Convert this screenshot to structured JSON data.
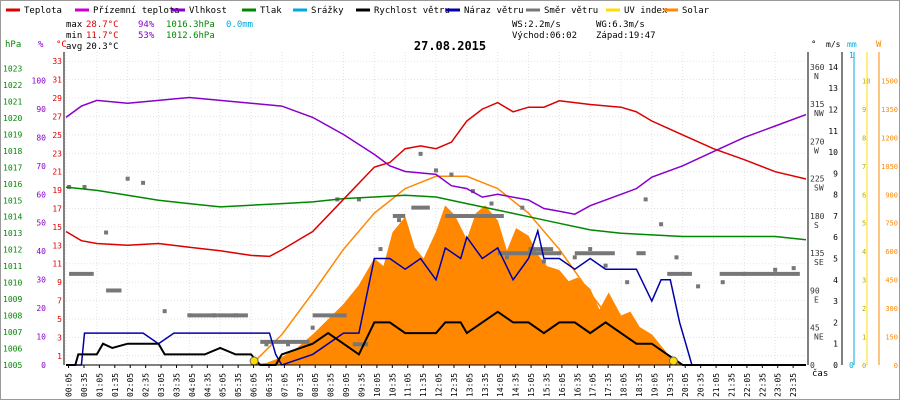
{
  "chart_data": {
    "type": "line",
    "title": "27.08.2015",
    "time_label": "čas",
    "colors": {
      "temperature": "#dd0000",
      "apparent_temperature": "#cc00cc",
      "humidity": "#8800cc",
      "pressure": "#008800",
      "precipitation": "#00aadd",
      "wind_speed": "#000000",
      "wind_gust": "#0000aa",
      "wind_direction": "#777777",
      "uv_index": "#ffdd00",
      "solar": "#ff8800"
    },
    "legend": [
      {
        "key": "temperature",
        "label": "Teplota"
      },
      {
        "key": "apparent_temperature",
        "label": "Přízemní teplota"
      },
      {
        "key": "humidity",
        "label": "Vlhkost"
      },
      {
        "key": "pressure",
        "label": "Tlak"
      },
      {
        "key": "precipitation",
        "label": "Srážky"
      },
      {
        "key": "wind_speed",
        "label": "Rychlost větru"
      },
      {
        "key": "wind_gust",
        "label": "Náraz větru"
      },
      {
        "key": "wind_direction",
        "label": "Směr větru"
      },
      {
        "key": "uv_index",
        "label": "UV index"
      },
      {
        "key": "solar",
        "label": "Solar"
      }
    ],
    "stats": {
      "max_label": "max",
      "max_temp": "28.7°C",
      "max_hum": "94%",
      "max_press": "1016.3hPa",
      "rain": "0.0mm",
      "min_label": "min",
      "min_temp": "11.7°C",
      "min_hum": "53%",
      "min_press": "1012.6hPa",
      "avg_label": "avg",
      "avg_temp": "20.3°C",
      "ws": "WS:2.2m/s",
      "wg": "WG:6.3m/s",
      "sunrise": "Východ:06:02",
      "sunset": "Západ:19:47"
    },
    "left_axes": {
      "pressure": {
        "unit": "hPa",
        "ticks": [
          "1023",
          "1022",
          "1021",
          "1020",
          "1019",
          "1018",
          "1017",
          "1016",
          "1015",
          "1014",
          "1013",
          "1012",
          "1011",
          "1010",
          "1009",
          "1008",
          "1007",
          "1006",
          "1005"
        ]
      },
      "humidity": {
        "unit": "%",
        "ticks": [
          "100",
          "90",
          "80",
          "70",
          "60",
          "50",
          "40",
          "30",
          "20",
          "10",
          "0"
        ]
      },
      "temperature": {
        "unit": "°C",
        "ticks": [
          "33",
          "31",
          "29",
          "27",
          "25",
          "23",
          "21",
          "19",
          "17",
          "15",
          "13",
          "11",
          "9",
          "7",
          "5",
          "3",
          "1"
        ]
      }
    },
    "right_axes": {
      "direction": {
        "unit": "°",
        "ticks": [
          "360",
          "315",
          "270",
          "225",
          "180",
          "135",
          "90",
          "45",
          "0"
        ],
        "compass": [
          "N",
          "NW",
          "W",
          "SW",
          "S",
          "SE",
          "E",
          "NE",
          ""
        ]
      },
      "wind": {
        "unit": "m/s",
        "ticks": [
          "14",
          "13",
          "12",
          "11",
          "10",
          "9",
          "8",
          "7",
          "6",
          "5",
          "4",
          "3",
          "2",
          "1",
          "0"
        ]
      },
      "rain": {
        "unit": "mm",
        "ticks": [
          "1",
          "0"
        ]
      },
      "uv": {
        "unit": "",
        "ticks": [
          "10",
          "9",
          "8",
          "7",
          "6",
          "5",
          "4",
          "3",
          "2",
          "1",
          "0"
        ]
      },
      "solar": {
        "unit": "W",
        "ticks": [
          "1500",
          "1350",
          "1200",
          "1050",
          "900",
          "750",
          "600",
          "450",
          "300",
          "150",
          "0"
        ]
      }
    },
    "x_labels": [
      "00:05",
      "00:35",
      "01:05",
      "01:35",
      "02:05",
      "02:35",
      "03:05",
      "03:35",
      "04:05",
      "04:35",
      "05:05",
      "05:35",
      "06:05",
      "06:35",
      "07:05",
      "07:35",
      "08:05",
      "08:35",
      "09:05",
      "09:35",
      "10:05",
      "10:35",
      "11:05",
      "11:35",
      "12:05",
      "12:35",
      "13:05",
      "13:35",
      "14:05",
      "14:35",
      "15:05",
      "15:35",
      "16:05",
      "16:35",
      "17:05",
      "17:35",
      "18:05",
      "18:35",
      "19:05",
      "19:35",
      "20:05",
      "20:35",
      "21:05",
      "21:35",
      "22:05",
      "22:35",
      "23:05",
      "23:35"
    ],
    "series": {
      "temperature": [
        [
          0,
          14.5
        ],
        [
          0.5,
          13.5
        ],
        [
          1,
          13.2
        ],
        [
          2,
          13
        ],
        [
          3,
          13.2
        ],
        [
          4,
          12.8
        ],
        [
          5,
          12.4
        ],
        [
          6,
          11.9
        ],
        [
          6.6,
          11.8
        ],
        [
          7,
          12.5
        ],
        [
          8,
          14.5
        ],
        [
          9,
          18
        ],
        [
          10,
          21.5
        ],
        [
          10.5,
          22
        ],
        [
          11,
          23.5
        ],
        [
          11.5,
          23.8
        ],
        [
          12,
          23.5
        ],
        [
          12.5,
          24.2
        ],
        [
          13,
          26.5
        ],
        [
          13.5,
          27.8
        ],
        [
          14,
          28.5
        ],
        [
          14.5,
          27.5
        ],
        [
          15,
          28
        ],
        [
          15.5,
          28
        ],
        [
          16,
          28.7
        ],
        [
          16.5,
          28.5
        ],
        [
          17,
          28.3
        ],
        [
          18,
          28
        ],
        [
          18.5,
          27.5
        ],
        [
          19,
          26.5
        ],
        [
          20,
          25
        ],
        [
          21,
          23.5
        ],
        [
          22,
          22.3
        ],
        [
          23,
          21
        ],
        [
          24,
          20.2
        ]
      ],
      "humidity": [
        [
          0,
          87
        ],
        [
          0.5,
          91
        ],
        [
          1,
          93
        ],
        [
          2,
          92
        ],
        [
          3,
          93
        ],
        [
          4,
          94
        ],
        [
          5,
          93
        ],
        [
          6,
          92
        ],
        [
          7,
          91
        ],
        [
          8,
          87
        ],
        [
          9,
          81
        ],
        [
          10,
          74
        ],
        [
          10.5,
          70
        ],
        [
          11,
          68
        ],
        [
          12,
          67
        ],
        [
          12.5,
          63
        ],
        [
          13,
          62
        ],
        [
          13.5,
          59
        ],
        [
          14,
          60
        ],
        [
          15,
          58
        ],
        [
          15.5,
          55
        ],
        [
          16,
          54
        ],
        [
          16.5,
          53
        ],
        [
          17,
          56
        ],
        [
          18,
          60
        ],
        [
          18.5,
          62
        ],
        [
          19,
          66
        ],
        [
          20,
          70
        ],
        [
          21,
          75
        ],
        [
          22,
          80
        ],
        [
          23,
          84
        ],
        [
          24,
          88
        ]
      ],
      "pressure": [
        [
          0,
          1015.8
        ],
        [
          1,
          1015.6
        ],
        [
          2,
          1015.3
        ],
        [
          3,
          1015
        ],
        [
          4,
          1014.8
        ],
        [
          5,
          1014.6
        ],
        [
          6,
          1014.7
        ],
        [
          7,
          1014.8
        ],
        [
          8,
          1014.9
        ],
        [
          9,
          1015.1
        ],
        [
          10,
          1015.2
        ],
        [
          11,
          1015.3
        ],
        [
          12,
          1015.2
        ],
        [
          13,
          1014.8
        ],
        [
          14,
          1014.4
        ],
        [
          15,
          1014
        ],
        [
          16,
          1013.6
        ],
        [
          17,
          1013.2
        ],
        [
          18,
          1013
        ],
        [
          19,
          1012.9
        ],
        [
          20,
          1012.8
        ],
        [
          21,
          1012.8
        ],
        [
          22,
          1012.8
        ],
        [
          23,
          1012.8
        ],
        [
          24,
          1012.6
        ]
      ],
      "wind_speed": [
        [
          0,
          0
        ],
        [
          0.3,
          0
        ],
        [
          0.4,
          0.5
        ],
        [
          1,
          0.5
        ],
        [
          1.2,
          1
        ],
        [
          1.5,
          0.8
        ],
        [
          2,
          1
        ],
        [
          3,
          1
        ],
        [
          3.2,
          0.5
        ],
        [
          4,
          0.5
        ],
        [
          4.5,
          0.5
        ],
        [
          5,
          0.8
        ],
        [
          5.5,
          0.5
        ],
        [
          6,
          0.5
        ],
        [
          6.3,
          0
        ],
        [
          6.8,
          0
        ],
        [
          7,
          0.5
        ],
        [
          8,
          1
        ],
        [
          8.5,
          1.5
        ],
        [
          9,
          1
        ],
        [
          9.5,
          0.5
        ],
        [
          10,
          2
        ],
        [
          10.5,
          2
        ],
        [
          11,
          1.5
        ],
        [
          11.5,
          1.5
        ],
        [
          12,
          1.5
        ],
        [
          12.3,
          2
        ],
        [
          12.8,
          2
        ],
        [
          13,
          1.5
        ],
        [
          13.5,
          2
        ],
        [
          14,
          2.5
        ],
        [
          14.5,
          2
        ],
        [
          15,
          2
        ],
        [
          15.5,
          1.5
        ],
        [
          16,
          2
        ],
        [
          16.5,
          2
        ],
        [
          17,
          1.5
        ],
        [
          17.5,
          2
        ],
        [
          18,
          1.5
        ],
        [
          18.5,
          1
        ],
        [
          19,
          1
        ],
        [
          19.5,
          0.5
        ],
        [
          20,
          0
        ],
        [
          24,
          0
        ]
      ],
      "wind_gust": [
        [
          0,
          0
        ],
        [
          0.5,
          0
        ],
        [
          0.6,
          1.5
        ],
        [
          1,
          1.5
        ],
        [
          2,
          1.5
        ],
        [
          2.5,
          1.5
        ],
        [
          3,
          1
        ],
        [
          3.5,
          1.5
        ],
        [
          4,
          1.5
        ],
        [
          5,
          1.5
        ],
        [
          5.5,
          1.5
        ],
        [
          6,
          1.5
        ],
        [
          6.6,
          1.5
        ],
        [
          6.8,
          0.5
        ],
        [
          7,
          0
        ],
        [
          8,
          0.5
        ],
        [
          9,
          1.5
        ],
        [
          9.5,
          1.5
        ],
        [
          10,
          5
        ],
        [
          10.5,
          5
        ],
        [
          11,
          4.5
        ],
        [
          11.5,
          5
        ],
        [
          12,
          4
        ],
        [
          12.3,
          5.5
        ],
        [
          12.8,
          5
        ],
        [
          13,
          6
        ],
        [
          13.5,
          5
        ],
        [
          14,
          5.5
        ],
        [
          14.5,
          4
        ],
        [
          15,
          5
        ],
        [
          15.3,
          6.3
        ],
        [
          15.5,
          5
        ],
        [
          16,
          5
        ],
        [
          16.5,
          4.5
        ],
        [
          17,
          5
        ],
        [
          17.5,
          4.5
        ],
        [
          18,
          4.5
        ],
        [
          18.5,
          4.5
        ],
        [
          19,
          3
        ],
        [
          19.3,
          4
        ],
        [
          19.6,
          4
        ],
        [
          19.9,
          2
        ],
        [
          20.1,
          1
        ],
        [
          20.3,
          0
        ],
        [
          24,
          0
        ]
      ],
      "solar": [
        [
          0,
          0
        ],
        [
          6,
          0
        ],
        [
          6.5,
          10
        ],
        [
          7,
          40
        ],
        [
          7.5,
          90
        ],
        [
          8,
          160
        ],
        [
          8.5,
          240
        ],
        [
          9,
          320
        ],
        [
          9.5,
          420
        ],
        [
          10,
          560
        ],
        [
          10.3,
          520
        ],
        [
          10.6,
          700
        ],
        [
          11,
          780
        ],
        [
          11.3,
          620
        ],
        [
          11.6,
          560
        ],
        [
          12,
          700
        ],
        [
          12.3,
          840
        ],
        [
          12.6,
          790
        ],
        [
          13,
          660
        ],
        [
          13.3,
          800
        ],
        [
          13.6,
          840
        ],
        [
          14,
          760
        ],
        [
          14.3,
          600
        ],
        [
          14.6,
          720
        ],
        [
          15,
          680
        ],
        [
          15.3,
          580
        ],
        [
          15.6,
          520
        ],
        [
          16,
          500
        ],
        [
          16.3,
          440
        ],
        [
          16.6,
          460
        ],
        [
          17,
          400
        ],
        [
          17.3,
          290
        ],
        [
          17.6,
          380
        ],
        [
          18,
          260
        ],
        [
          18.3,
          280
        ],
        [
          18.6,
          200
        ],
        [
          19,
          160
        ],
        [
          19.3,
          100
        ],
        [
          19.6,
          40
        ],
        [
          19.9,
          5
        ],
        [
          20.2,
          0
        ],
        [
          24,
          0
        ]
      ],
      "solar_max": [
        [
          6,
          0
        ],
        [
          7,
          160
        ],
        [
          8,
          380
        ],
        [
          9,
          610
        ],
        [
          10,
          800
        ],
        [
          11,
          930
        ],
        [
          12,
          995
        ],
        [
          13,
          995
        ],
        [
          14,
          930
        ],
        [
          15,
          800
        ],
        [
          16,
          610
        ],
        [
          17,
          380
        ],
        [
          18,
          160
        ],
        [
          19,
          30
        ],
        [
          19.8,
          0
        ]
      ],
      "wind_direction": [
        [
          0.1,
          215
        ],
        [
          0.6,
          215
        ],
        [
          1.3,
          160
        ],
        [
          2,
          225
        ],
        [
          2.5,
          220
        ],
        [
          3.2,
          65
        ],
        [
          4,
          60
        ],
        [
          4.8,
          60
        ],
        [
          5.5,
          60
        ],
        [
          6.5,
          25
        ],
        [
          7.2,
          25
        ],
        [
          8,
          45
        ],
        [
          8.8,
          200
        ],
        [
          9.5,
          200
        ],
        [
          10.2,
          140
        ],
        [
          10.8,
          175
        ],
        [
          11.5,
          255
        ],
        [
          12,
          235
        ],
        [
          12.5,
          230
        ],
        [
          13.2,
          210
        ],
        [
          13.8,
          195
        ],
        [
          14.3,
          130
        ],
        [
          14.8,
          190
        ],
        [
          15.5,
          125
        ],
        [
          16,
          135
        ],
        [
          16.5,
          130
        ],
        [
          17,
          140
        ],
        [
          17.5,
          120
        ],
        [
          18.2,
          100
        ],
        [
          18.8,
          200
        ],
        [
          19.3,
          170
        ],
        [
          19.8,
          130
        ],
        [
          20.5,
          95
        ],
        [
          21.3,
          100
        ],
        [
          22,
          110
        ],
        [
          23,
          115
        ],
        [
          23.6,
          117
        ]
      ]
    },
    "direction_segments": [
      [
        0.1,
        0.9,
        110
      ],
      [
        1.3,
        1.8,
        90
      ],
      [
        4.0,
        4.9,
        60
      ],
      [
        4.9,
        5.9,
        60
      ],
      [
        6.3,
        7.9,
        28
      ],
      [
        8.0,
        9.1,
        60
      ],
      [
        9.3,
        9.8,
        25
      ],
      [
        11.2,
        11.8,
        190
      ],
      [
        10.6,
        11.0,
        180
      ],
      [
        12.3,
        13.2,
        180
      ],
      [
        12.8,
        14.2,
        180
      ],
      [
        14.0,
        16.0,
        135
      ],
      [
        15.0,
        15.8,
        140
      ],
      [
        16.5,
        17.8,
        135
      ],
      [
        18.5,
        18.8,
        135
      ],
      [
        19.5,
        20.3,
        110
      ],
      [
        21.2,
        23.8,
        110
      ]
    ],
    "uv_points": [
      [
        6.1,
        0
      ],
      [
        19.7,
        0
      ]
    ]
  }
}
